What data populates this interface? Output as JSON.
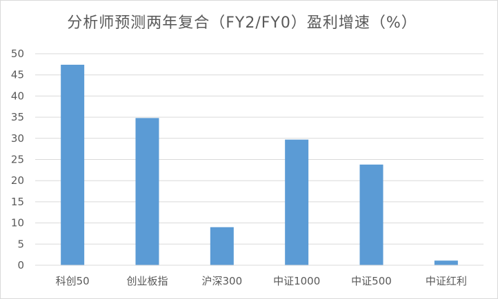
{
  "chart_data": {
    "type": "bar",
    "title": "分析师预测两年复合（FY2/FY0）盈利增速（%）",
    "xlabel": "",
    "ylabel": "",
    "categories": [
      "科创50",
      "创业板指",
      "沪深300",
      "中证1000",
      "中证500",
      "中证红利"
    ],
    "values": [
      47.4,
      34.8,
      9.0,
      29.7,
      23.8,
      1.1
    ],
    "ylim": [
      0,
      50
    ],
    "yticks": [
      0,
      5,
      10,
      15,
      20,
      25,
      30,
      35,
      40,
      45,
      50
    ],
    "grid": true,
    "legend": "none",
    "bar_color": "#5b9bd5",
    "grid_color": "#d9d9d9",
    "text_color": "#595959"
  }
}
